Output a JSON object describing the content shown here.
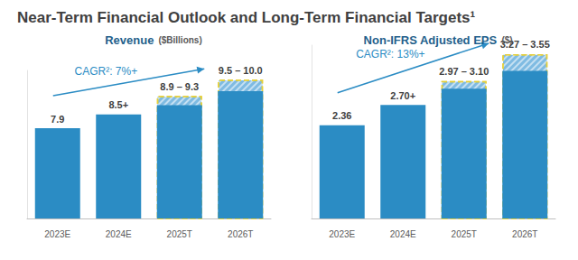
{
  "title": "Near-Term Financial Outlook and Long-Term Financial Targets¹",
  "chart_data": [
    {
      "type": "bar",
      "title": "Revenue",
      "subtitle": "($Billions)",
      "annotation": "CAGR²: 7%+",
      "categories": [
        "2023E",
        "2024E",
        "2025T",
        "2026T"
      ],
      "values": [
        7.9,
        8.5,
        8.9,
        9.5
      ],
      "high": [
        null,
        null,
        9.3,
        10.0
      ],
      "value_labels": [
        "7.9",
        "8.5+",
        "8.9 – 9.3",
        "9.5 – 10.0"
      ],
      "color": "#2b8cc4",
      "ylim": [
        4,
        10.4
      ],
      "grid": false,
      "tick_labels": "x",
      "data_labels": true
    },
    {
      "type": "bar",
      "title": "Non-IFRS Adjusted EPS",
      "subtitle": "($)",
      "annotation": "CAGR²: 13%+",
      "categories": [
        "2023E",
        "2024E",
        "2025T",
        "2026T"
      ],
      "values": [
        2.36,
        2.7,
        2.97,
        3.27
      ],
      "high": [
        null,
        null,
        3.1,
        3.55
      ],
      "value_labels": [
        "2.36",
        "2.70+",
        "2.97 – 3.10",
        "3.27 – 3.55"
      ],
      "color": "#2b8cc4",
      "ylim": [
        0.8,
        3.7
      ],
      "grid": false,
      "tick_labels": "x",
      "data_labels": true
    }
  ]
}
